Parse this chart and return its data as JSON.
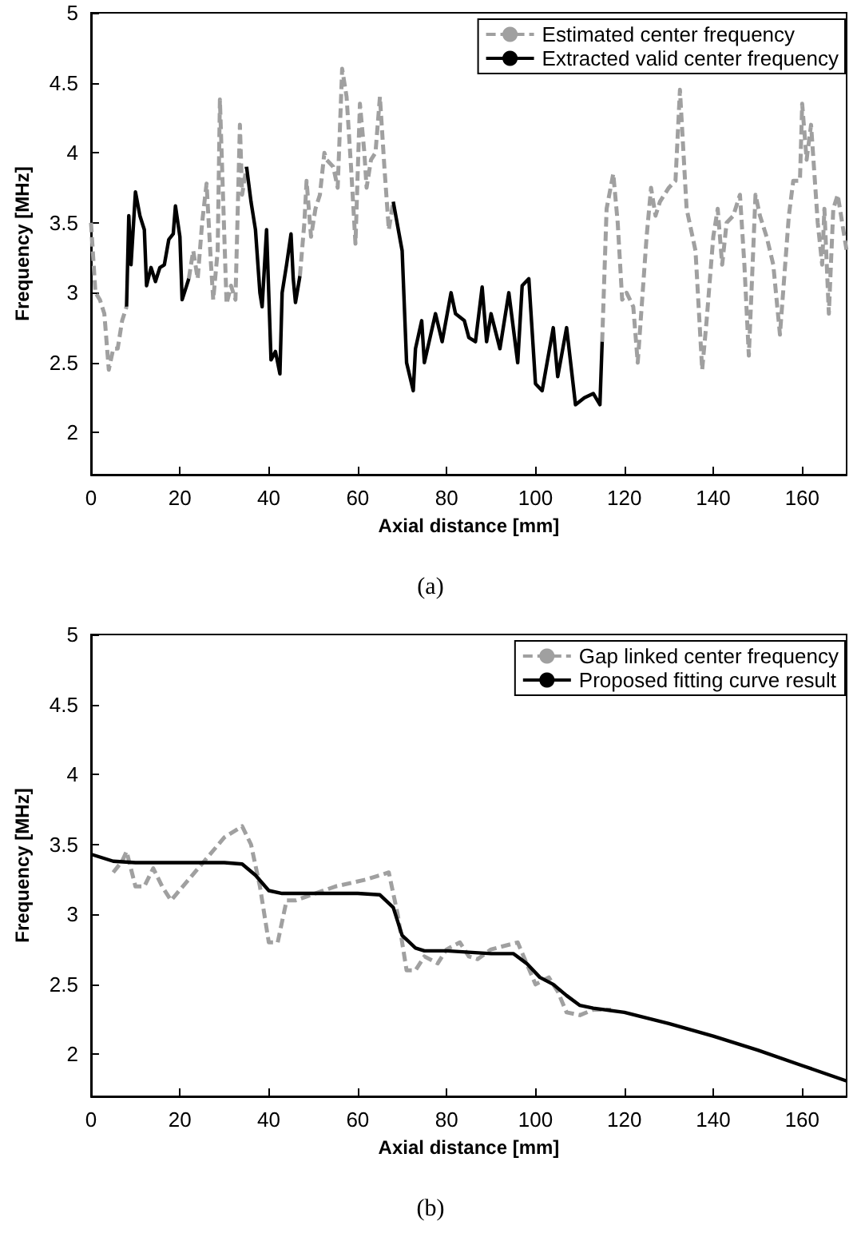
{
  "chart_data": [
    {
      "type": "line",
      "xlabel": "Axial distance [mm]",
      "ylabel": "Frequency [MHz]",
      "annotations": [
        "(a)"
      ],
      "xlim": [
        0,
        170
      ],
      "xticks": [
        0,
        20,
        40,
        60,
        80,
        100,
        120,
        140,
        160
      ],
      "ylim": [
        1.7,
        5
      ],
      "yticks": [
        2,
        2.5,
        3,
        3.5,
        4,
        4.5,
        5
      ],
      "grid": false,
      "legend": "top right",
      "marker": "none",
      "series": [
        {
          "name": "Estimated center frequency",
          "color": "#a0a0a0",
          "line_style": "dashed",
          "x": [
            0,
            1,
            2,
            3,
            4,
            5,
            6,
            7,
            8,
            null,
            22,
            23,
            24,
            25,
            26,
            27,
            27.5,
            28.5,
            29,
            30,
            30.5,
            31.5,
            32.5,
            33.5,
            34,
            35,
            null,
            47,
            48,
            48.5,
            49.5,
            50.5,
            51.5,
            52.5,
            53,
            54.5,
            55.5,
            56.5,
            57.5,
            58.5,
            59.5,
            60.5,
            61.5,
            62,
            63,
            64,
            65,
            66,
            67,
            68,
            null,
            115,
            116,
            117.5,
            118.5,
            119.5,
            120.5,
            122,
            123,
            125,
            126,
            127,
            128,
            130,
            131.5,
            132.5,
            134,
            136,
            137.5,
            138.5,
            140,
            141,
            142,
            143,
            144.5,
            146,
            147,
            148,
            149.5,
            150.5,
            152,
            153.5,
            155,
            157,
            158,
            159.5,
            160,
            161,
            162,
            163.5,
            164.5,
            165,
            166,
            167,
            168,
            169,
            170
          ],
          "values": [
            3.5,
            3.0,
            2.95,
            2.85,
            2.45,
            2.6,
            2.6,
            2.8,
            2.9,
            null,
            3.1,
            3.3,
            3.1,
            3.5,
            3.78,
            3.2,
            2.95,
            3.3,
            4.38,
            3.4,
            2.92,
            3.05,
            2.95,
            4.2,
            3.7,
            3.9,
            null,
            3.12,
            3.5,
            3.8,
            3.4,
            3.6,
            3.7,
            4.0,
            3.95,
            3.9,
            3.75,
            4.6,
            4.4,
            3.9,
            3.35,
            4.35,
            4.0,
            3.75,
            3.95,
            4.0,
            4.4,
            3.9,
            3.45,
            3.65,
            null,
            2.65,
            3.6,
            3.85,
            3.5,
            2.95,
            3.0,
            2.9,
            2.5,
            3.4,
            3.75,
            3.55,
            3.65,
            3.75,
            3.8,
            4.45,
            3.6,
            3.3,
            2.45,
            2.8,
            3.4,
            3.6,
            3.2,
            3.5,
            3.55,
            3.7,
            3.2,
            2.55,
            3.7,
            3.55,
            3.4,
            3.2,
            2.7,
            3.55,
            3.8,
            3.8,
            4.35,
            3.95,
            4.2,
            3.5,
            3.2,
            3.6,
            2.85,
            3.6,
            3.7,
            3.5,
            3.3
          ]
        },
        {
          "name": "Extracted valid center frequency",
          "color": "#000000",
          "line_style": "solid",
          "x": [
            8,
            8.5,
            9,
            10,
            11,
            12,
            12.5,
            13.5,
            14.5,
            15.5,
            16.5,
            17.5,
            18.5,
            19,
            20,
            20.5,
            21.5,
            22,
            null,
            35,
            36,
            37,
            38,
            38.5,
            39.5,
            40.5,
            41.5,
            42.5,
            43,
            44,
            45,
            45.5,
            46,
            47,
            null,
            68,
            70,
            71,
            72.5,
            73,
            74.4,
            75,
            77.5,
            79,
            81,
            82,
            84,
            85,
            86.5,
            88,
            89,
            90,
            92,
            94,
            96,
            97,
            98.5,
            100,
            101.5,
            104,
            105,
            107,
            109,
            111,
            113,
            114.5,
            115
          ],
          "values": [
            2.9,
            3.55,
            3.2,
            3.72,
            3.55,
            3.45,
            3.05,
            3.18,
            3.08,
            3.18,
            3.2,
            3.38,
            3.42,
            3.62,
            3.4,
            2.95,
            3.05,
            3.1,
            null,
            3.9,
            3.65,
            3.45,
            3.0,
            2.9,
            3.45,
            2.52,
            2.58,
            2.42,
            3.0,
            3.2,
            3.42,
            3.1,
            2.93,
            3.12,
            null,
            3.65,
            3.3,
            2.5,
            2.3,
            2.6,
            2.8,
            2.5,
            2.85,
            2.65,
            3.0,
            2.85,
            2.8,
            2.68,
            2.65,
            3.04,
            2.65,
            2.85,
            2.6,
            3.0,
            2.5,
            3.05,
            3.1,
            2.35,
            2.3,
            2.75,
            2.4,
            2.75,
            2.2,
            2.25,
            2.28,
            2.2,
            2.65
          ]
        }
      ]
    },
    {
      "type": "line",
      "xlabel": "Axial distance [mm]",
      "ylabel": "Frequency [MHz]",
      "annotations": [
        "(b)"
      ],
      "xlim": [
        0,
        170
      ],
      "xticks": [
        0,
        20,
        40,
        60,
        80,
        100,
        120,
        140,
        160
      ],
      "ylim": [
        1.7,
        5
      ],
      "yticks": [
        2,
        2.5,
        3,
        3.5,
        4,
        4.5,
        5
      ],
      "grid": false,
      "legend": "top right",
      "marker": "none",
      "series": [
        {
          "name": "Gap linked center frequency",
          "color": "#a0a0a0",
          "line_style": "dashed",
          "x": [
            5,
            7,
            8,
            10,
            12,
            14,
            16,
            18,
            22,
            26,
            30,
            34,
            36,
            38,
            40,
            42,
            44,
            46,
            55,
            62,
            67,
            69,
            71,
            73,
            75,
            78,
            80,
            83,
            85,
            87,
            90,
            96,
            98,
            100,
            103,
            105,
            107,
            110,
            113,
            117
          ],
          "values": [
            3.3,
            3.38,
            3.45,
            3.2,
            3.2,
            3.33,
            3.2,
            3.1,
            3.25,
            3.4,
            3.55,
            3.63,
            3.5,
            3.2,
            2.8,
            2.8,
            3.1,
            3.1,
            3.2,
            3.25,
            3.3,
            3.0,
            2.6,
            2.6,
            2.7,
            2.65,
            2.75,
            2.8,
            2.7,
            2.68,
            2.75,
            2.8,
            2.65,
            2.5,
            2.55,
            2.45,
            2.3,
            2.28,
            2.32,
            2.32
          ]
        },
        {
          "name": "Proposed fitting curve result",
          "color": "#000000",
          "line_style": "solid",
          "x": [
            0,
            5,
            10,
            20,
            30,
            34,
            37,
            40,
            43,
            50,
            60,
            65,
            68,
            70,
            73,
            75,
            80,
            90,
            95,
            98,
            101,
            104,
            107,
            110,
            113,
            120,
            130,
            140,
            150,
            160,
            170
          ],
          "values": [
            3.43,
            3.38,
            3.37,
            3.37,
            3.37,
            3.36,
            3.28,
            3.17,
            3.15,
            3.15,
            3.15,
            3.14,
            3.05,
            2.85,
            2.76,
            2.74,
            2.74,
            2.72,
            2.72,
            2.65,
            2.55,
            2.5,
            2.42,
            2.35,
            2.33,
            2.3,
            2.22,
            2.13,
            2.03,
            1.92,
            1.81
          ]
        }
      ]
    }
  ]
}
